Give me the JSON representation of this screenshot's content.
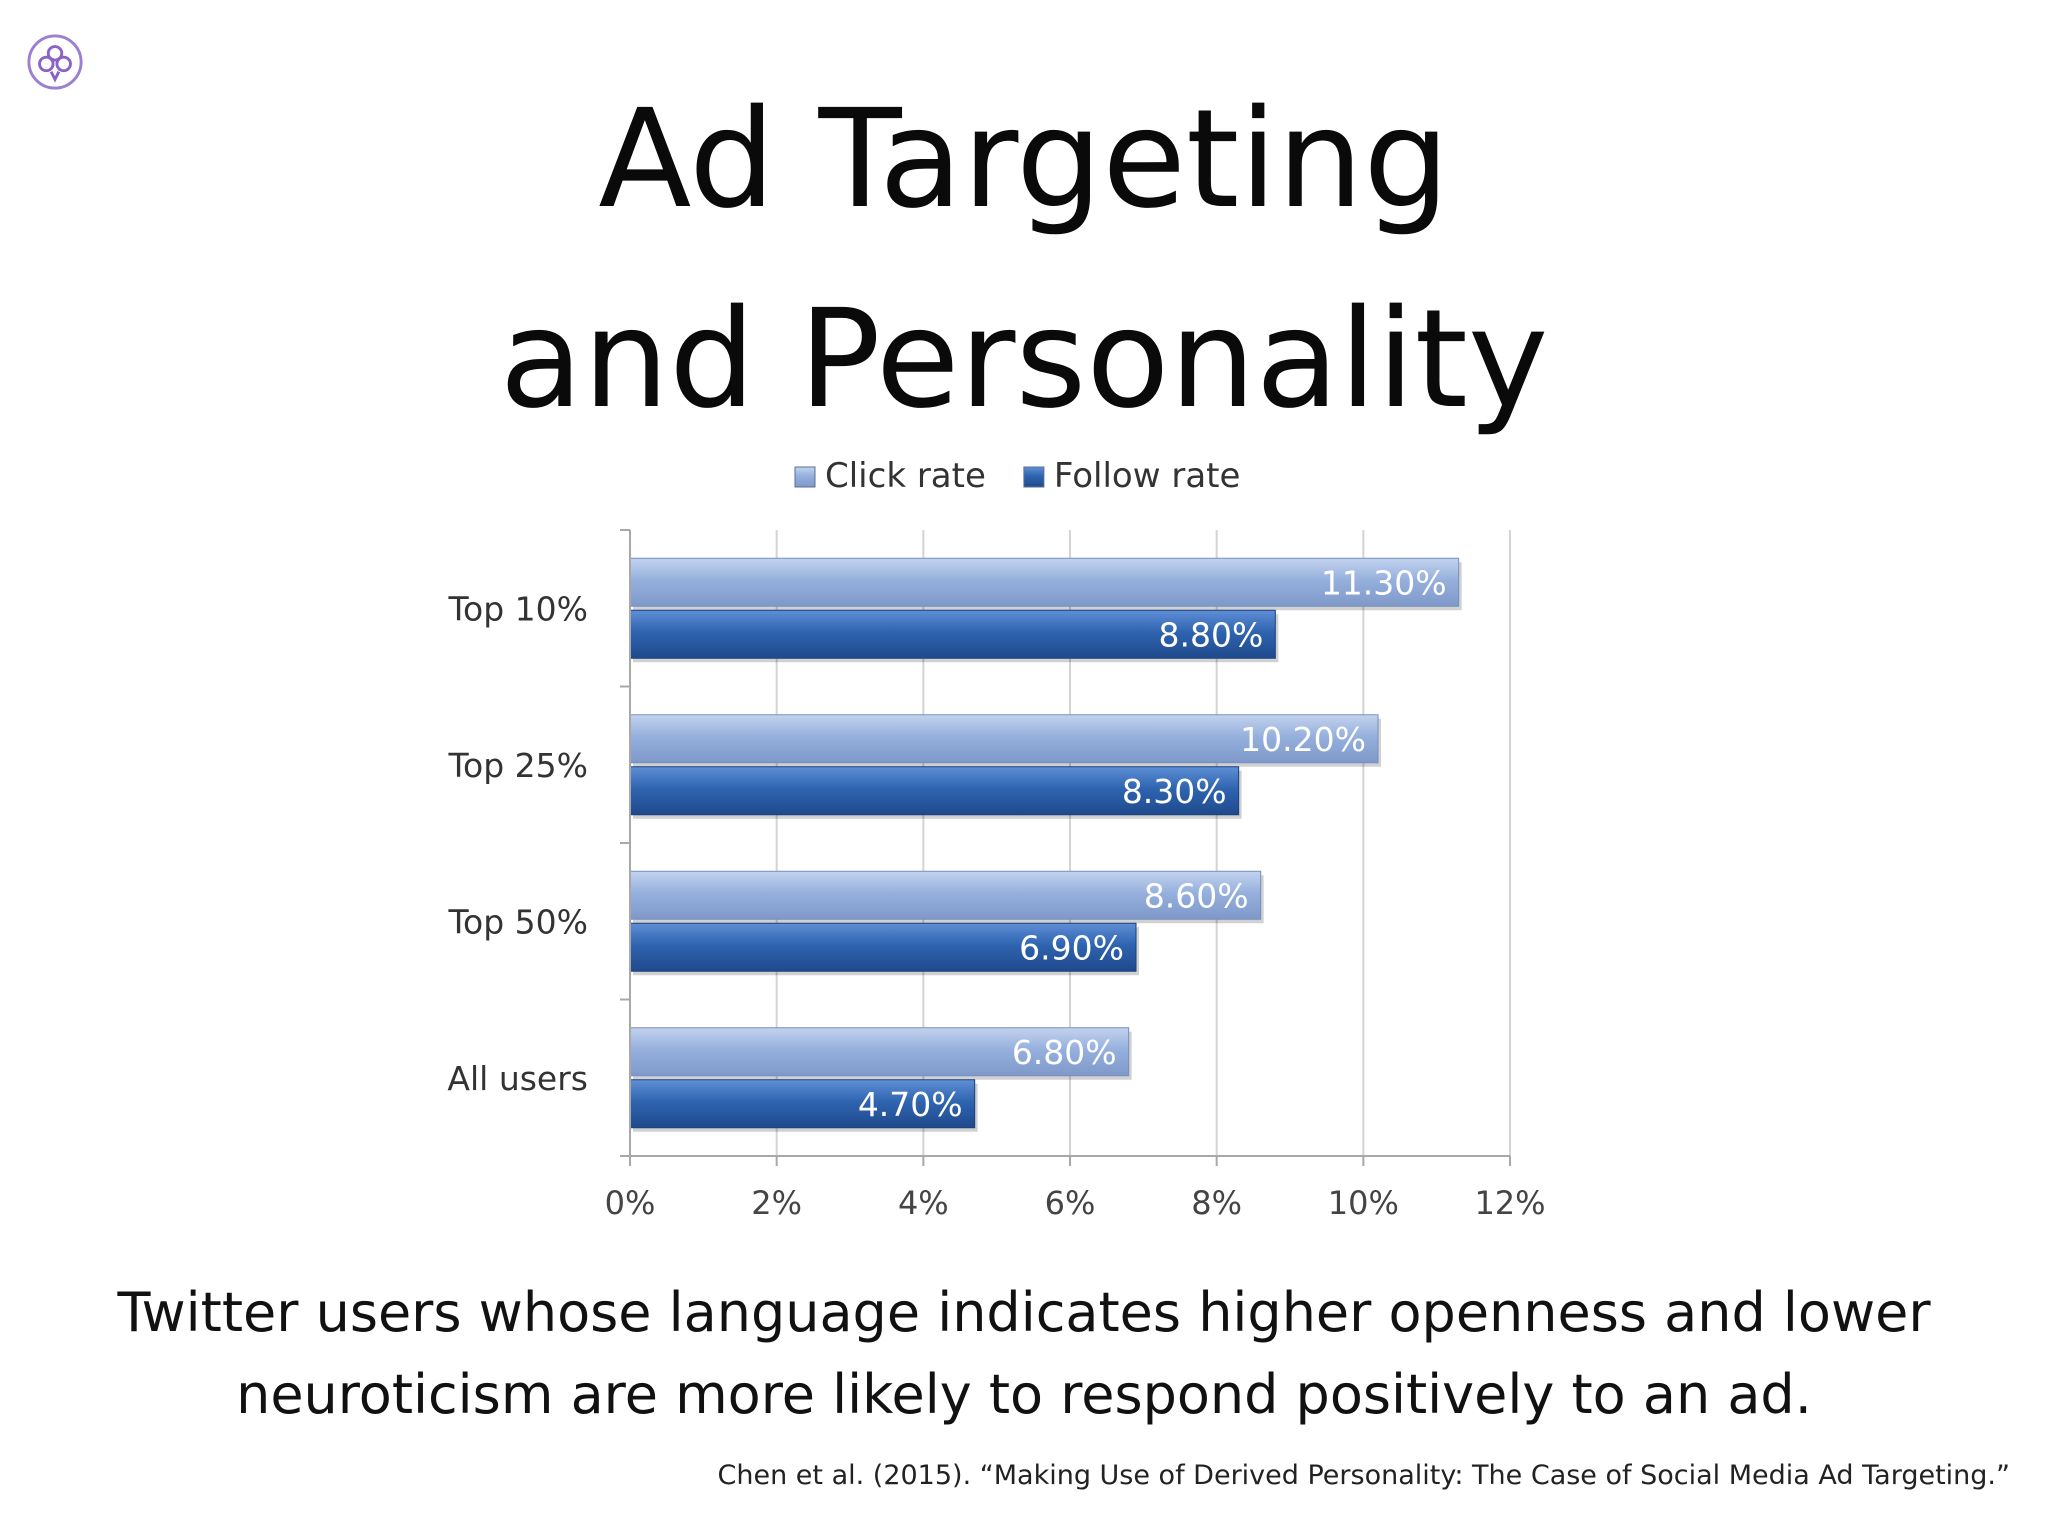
{
  "slide": {
    "title_line1": "Ad Targeting",
    "title_line2": "and Personality",
    "caption_line1": "Twitter users whose language indicates higher openness and lower",
    "caption_line2": "neuroticism are more likely to respond positively to an ad.",
    "citation": "Chen et al. (2015). “Making Use of Derived Personality: The Case of Social Media Ad Targeting.”",
    "logo_icon": "trefoil-logo-icon"
  },
  "chart_data": {
    "type": "bar",
    "orientation": "horizontal",
    "categories": [
      "Top 10%",
      "Top 25%",
      "Top 50%",
      "All users"
    ],
    "series": [
      {
        "name": "Click rate",
        "values": [
          11.3,
          10.2,
          8.6,
          6.8
        ],
        "labels": [
          "11.30%",
          "10.20%",
          "8.60%",
          "6.80%"
        ],
        "color": "#93aedb"
      },
      {
        "name": "Follow rate",
        "values": [
          8.8,
          8.3,
          6.9,
          4.7
        ],
        "labels": [
          "8.80%",
          "8.30%",
          "6.90%",
          "4.70%"
        ],
        "color": "#2f64b0"
      }
    ],
    "xlim": [
      0,
      12
    ],
    "xticks": [
      "0%",
      "2%",
      "4%",
      "6%",
      "8%",
      "10%",
      "12%"
    ],
    "grid": true,
    "legend_position": "top"
  }
}
